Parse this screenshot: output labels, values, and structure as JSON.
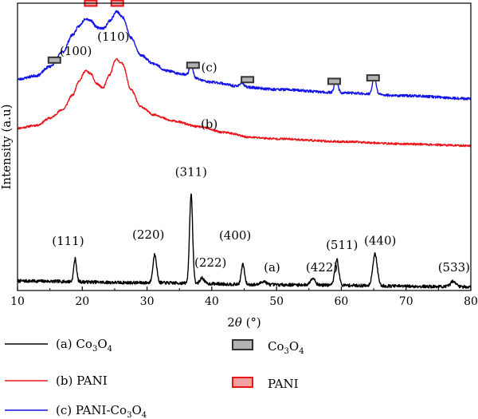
{
  "chart_data": {
    "type": "line",
    "title": "",
    "xlabel": {
      "main": "2",
      "theta": "θ",
      "unit": " (°)"
    },
    "ylabel": "Intensity (a.u)",
    "xlim": [
      10,
      80
    ],
    "ylim": [
      0,
      100
    ],
    "x_ticks": [
      10,
      20,
      30,
      40,
      50,
      60,
      70,
      80
    ],
    "y_ticks_shown": false,
    "grid": false,
    "legend_placement": "bottom",
    "series": [
      {
        "key": "a",
        "legend": {
          "label": "(a) Co",
          "sub1": "3",
          "mid": "O",
          "sub2": "4"
        },
        "color": "#000000",
        "base": [
          [
            10,
            3.3
          ],
          [
            30,
            2.7
          ],
          [
            50,
            2.0
          ],
          [
            80,
            1.3
          ]
        ],
        "peaks": [
          [
            18.9,
            8,
            0.22
          ],
          [
            31.2,
            10,
            0.28
          ],
          [
            36.8,
            31,
            0.24
          ],
          [
            38.5,
            2.0,
            0.3
          ],
          [
            44.8,
            7,
            0.25
          ],
          [
            48.0,
            1.2,
            0.4
          ],
          [
            55.6,
            2.5,
            0.35
          ],
          [
            59.3,
            9,
            0.3
          ],
          [
            65.2,
            11,
            0.35
          ],
          [
            77.3,
            2.0,
            0.4
          ]
        ],
        "noise": 0.55,
        "seed": 7
      },
      {
        "key": "b",
        "legend": {
          "label": "(b) PANI"
        },
        "color": "#e8161b",
        "base": [
          [
            10,
            56.5
          ],
          [
            13,
            57.5
          ],
          [
            15,
            60
          ],
          [
            17,
            63
          ],
          [
            18.5,
            68
          ],
          [
            19.5,
            73
          ],
          [
            20.5,
            76.5
          ],
          [
            21.3,
            75.5
          ],
          [
            22.2,
            72
          ],
          [
            23.2,
            70.5
          ],
          [
            24.2,
            75
          ],
          [
            25.2,
            80.5
          ],
          [
            26.2,
            79
          ],
          [
            27.5,
            70
          ],
          [
            29,
            64
          ],
          [
            31,
            61.2
          ],
          [
            34,
            59
          ],
          [
            38,
            57
          ],
          [
            42,
            55
          ],
          [
            46,
            53.3
          ],
          [
            50,
            52.8
          ],
          [
            60,
            51.8
          ],
          [
            70,
            51.0
          ],
          [
            80,
            50.4
          ]
        ],
        "peaks": [],
        "noise": 0.35,
        "seed": 11
      },
      {
        "key": "c",
        "legend": {
          "label": "(c) PANI-Co",
          "sub1": "3",
          "mid": "O",
          "sub2": "4"
        },
        "color": "#1414e6",
        "base": [
          [
            10,
            73.5
          ],
          [
            13,
            74.8
          ],
          [
            15,
            78
          ],
          [
            17,
            83
          ],
          [
            18.5,
            89
          ],
          [
            19.5,
            92
          ],
          [
            20.5,
            94.7
          ],
          [
            21.3,
            94
          ],
          [
            22.3,
            91.5
          ],
          [
            23.3,
            91.3
          ],
          [
            24.3,
            94
          ],
          [
            25.3,
            97.1
          ],
          [
            26.3,
            95
          ],
          [
            27.5,
            88
          ],
          [
            29,
            82
          ],
          [
            31,
            79
          ],
          [
            33,
            76.5
          ],
          [
            35,
            75.5
          ],
          [
            40,
            72.5
          ],
          [
            45,
            70.8
          ],
          [
            50,
            70
          ],
          [
            60,
            68.8
          ],
          [
            70,
            67.8
          ],
          [
            80,
            66.8
          ]
        ],
        "peaks": [
          [
            36.8,
            4.5,
            0.25
          ],
          [
            44.6,
            1.5,
            0.3
          ],
          [
            59.2,
            4.5,
            0.28
          ],
          [
            65.1,
            6,
            0.28
          ]
        ],
        "noise": 0.45,
        "seed": 23
      }
    ],
    "annotations": [
      {
        "text": "(c)",
        "x": 39.6,
        "y": 76.3
      },
      {
        "text": "(b)",
        "x": 39.6,
        "y": 56.5
      },
      {
        "text": "(100)",
        "x": 19.0,
        "y": 81.9
      },
      {
        "text": "(110)",
        "x": 24.8,
        "y": 87.0
      },
      {
        "text": "(311)",
        "x": 36.8,
        "y": 39.9
      },
      {
        "text": "(111)",
        "x": 17.8,
        "y": 15.8
      },
      {
        "text": "(220)",
        "x": 30.2,
        "y": 18.0
      },
      {
        "text": "(222)",
        "x": 39.8,
        "y": 8.4
      },
      {
        "text": "(400)",
        "x": 43.6,
        "y": 17.8
      },
      {
        "text": "(a)",
        "x": 49.3,
        "y": 6.6
      },
      {
        "text": "(422)",
        "x": 57.0,
        "y": 6.6
      },
      {
        "text": "(511)",
        "x": 60.1,
        "y": 14.4
      },
      {
        "text": "(440)",
        "x": 66.0,
        "y": 16.0
      },
      {
        "text": "(533)",
        "x": 77.4,
        "y": 6.6
      }
    ],
    "phase_markers": [
      {
        "phase": "PANI",
        "x": 21.3,
        "y": 100.0
      },
      {
        "phase": "PANI",
        "x": 25.4,
        "y": 100.0
      },
      {
        "phase": "Co3O4",
        "x": 15.7,
        "y": 80.2
      },
      {
        "phase": "Co3O4",
        "x": 37.1,
        "y": 78.4
      },
      {
        "phase": "Co3O4",
        "x": 45.5,
        "y": 73.4
      },
      {
        "phase": "Co3O4",
        "x": 58.9,
        "y": 72.8
      },
      {
        "phase": "Co3O4",
        "x": 64.9,
        "y": 74.0
      }
    ],
    "phase_legend": [
      {
        "phase": "Co3O4",
        "label": "Co",
        "sub1": "3",
        "mid": "O",
        "sub2": "4",
        "fill": "#b3b3b3",
        "stroke": "#333333"
      },
      {
        "phase": "PANI",
        "label": "PANI",
        "fill": "#f2a1a1",
        "stroke": "#e8161b"
      }
    ]
  }
}
